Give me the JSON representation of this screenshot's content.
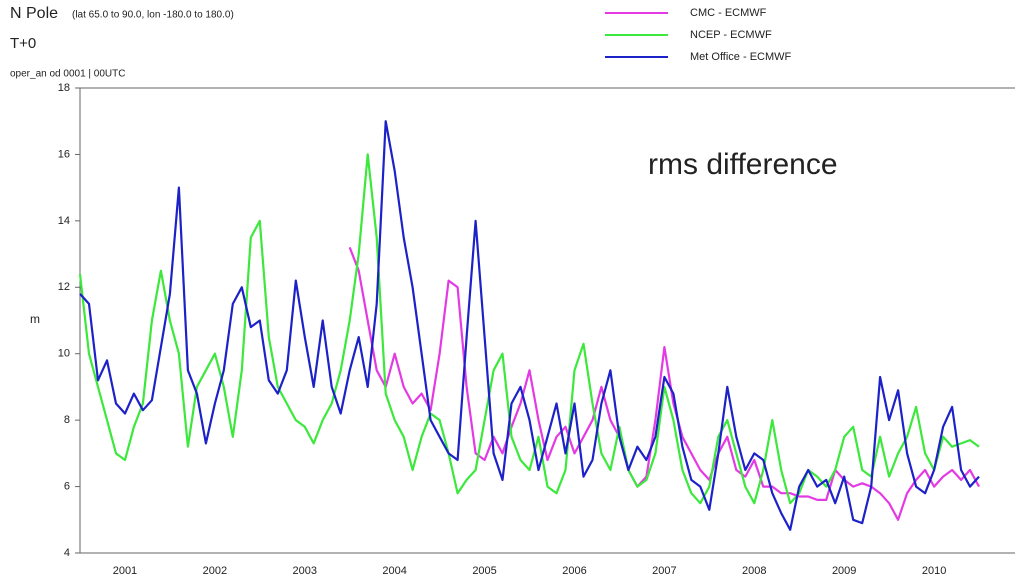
{
  "chart_data": {
    "type": "line",
    "title": "N Pole",
    "subtitle": "(lat 65.0 to 90.0, lon -180.0 to 180.0)",
    "lead_time": "T+0",
    "experiment": "oper_an od 0001 | 00UTC",
    "annotation": "rms difference",
    "ylabel": "m",
    "xlim": [
      2001,
      2011.4
    ],
    "ylim": [
      4,
      18
    ],
    "yticks": [
      4,
      6,
      8,
      10,
      12,
      14,
      16,
      18
    ],
    "xticks": [
      {
        "value": 2001.5,
        "label": "2001"
      },
      {
        "value": 2002.5,
        "label": "2002"
      },
      {
        "value": 2003.5,
        "label": "2003"
      },
      {
        "value": 2004.5,
        "label": "2004"
      },
      {
        "value": 2005.5,
        "label": "2005"
      },
      {
        "value": 2006.5,
        "label": "2006"
      },
      {
        "value": 2007.5,
        "label": "2007"
      },
      {
        "value": 2008.5,
        "label": "2008"
      },
      {
        "value": 2009.5,
        "label": "2009"
      },
      {
        "value": 2010.5,
        "label": "2010"
      }
    ],
    "grid": false,
    "x": [
      2001.0,
      2001.1,
      2001.2,
      2001.3,
      2001.4,
      2001.5,
      2001.6,
      2001.7,
      2001.8,
      2001.9,
      2002.0,
      2002.1,
      2002.2,
      2002.3,
      2002.4,
      2002.5,
      2002.6,
      2002.7,
      2002.8,
      2002.9,
      2003.0,
      2003.1,
      2003.2,
      2003.3,
      2003.4,
      2003.5,
      2003.6,
      2003.7,
      2003.8,
      2003.9,
      2004.0,
      2004.1,
      2004.2,
      2004.3,
      2004.4,
      2004.5,
      2004.6,
      2004.7,
      2004.8,
      2004.9,
      2005.0,
      2005.1,
      2005.2,
      2005.3,
      2005.4,
      2005.5,
      2005.6,
      2005.7,
      2005.8,
      2005.9,
      2006.0,
      2006.1,
      2006.2,
      2006.3,
      2006.4,
      2006.5,
      2006.6,
      2006.7,
      2006.8,
      2006.9,
      2007.0,
      2007.1,
      2007.2,
      2007.3,
      2007.4,
      2007.5,
      2007.6,
      2007.7,
      2007.8,
      2007.9,
      2008.0,
      2008.1,
      2008.2,
      2008.3,
      2008.4,
      2008.5,
      2008.6,
      2008.7,
      2008.8,
      2008.9,
      2009.0,
      2009.1,
      2009.2,
      2009.3,
      2009.4,
      2009.5,
      2009.6,
      2009.7,
      2009.8,
      2009.9,
      2010.0,
      2010.1,
      2010.2,
      2010.3,
      2010.4,
      2010.5,
      2010.6,
      2010.7,
      2010.8,
      2010.9,
      2011.0
    ],
    "series": [
      {
        "name": "CMC - ECMWF",
        "color": "#e43ae4",
        "values": [
          null,
          null,
          null,
          null,
          null,
          null,
          null,
          null,
          null,
          null,
          null,
          null,
          null,
          null,
          null,
          null,
          null,
          null,
          null,
          null,
          null,
          null,
          null,
          null,
          null,
          null,
          null,
          null,
          null,
          null,
          13.2,
          12.5,
          11.0,
          9.5,
          9.0,
          10.0,
          9.0,
          8.5,
          8.8,
          8.3,
          10.0,
          12.2,
          12.0,
          9.0,
          7.0,
          6.8,
          7.5,
          7.0,
          7.8,
          8.5,
          9.5,
          8.0,
          6.8,
          7.5,
          7.8,
          7.0,
          7.5,
          8.0,
          9.0,
          8.0,
          7.5,
          6.5,
          6.0,
          6.3,
          8.0,
          10.2,
          8.5,
          7.5,
          7.0,
          6.5,
          6.2,
          7.0,
          7.5,
          6.5,
          6.3,
          6.8,
          6.0,
          6.0,
          5.8,
          5.8,
          5.7,
          5.7,
          5.6,
          5.6,
          6.5,
          6.2,
          6.0,
          6.1,
          6.0,
          5.8,
          5.5,
          5.0,
          5.8,
          6.2,
          6.5,
          6.0,
          6.3,
          6.5,
          6.2,
          6.5,
          6.0
        ]
      },
      {
        "name": "NCEP - ECMWF",
        "color": "#3be83b",
        "values": [
          12.4,
          10.0,
          9.0,
          8.0,
          7.0,
          6.8,
          7.8,
          8.5,
          11.0,
          12.5,
          11.0,
          10.0,
          7.2,
          9.0,
          9.5,
          10.0,
          9.0,
          7.5,
          9.5,
          13.5,
          14.0,
          10.5,
          9.0,
          8.5,
          8.0,
          7.8,
          7.3,
          8.0,
          8.5,
          9.5,
          11.0,
          13.0,
          16.0,
          13.5,
          8.8,
          8.0,
          7.5,
          6.5,
          7.5,
          8.2,
          8.0,
          7.0,
          5.8,
          6.2,
          6.5,
          8.0,
          9.5,
          10.0,
          7.5,
          6.8,
          6.5,
          7.5,
          6.0,
          5.8,
          6.5,
          9.5,
          10.3,
          8.5,
          7.0,
          6.5,
          7.8,
          6.5,
          6.0,
          6.2,
          7.0,
          9.0,
          8.0,
          6.5,
          5.8,
          5.5,
          6.0,
          7.5,
          8.0,
          7.0,
          6.0,
          5.5,
          6.5,
          8.0,
          6.5,
          5.5,
          5.8,
          6.5,
          6.3,
          6.0,
          6.5,
          7.5,
          7.8,
          6.5,
          6.3,
          7.5,
          6.3,
          7.0,
          7.5,
          8.4,
          7.0,
          6.5,
          7.5,
          7.2,
          7.3,
          7.4,
          7.2
        ]
      },
      {
        "name": "Met Office - ECMWF",
        "color": "#1c22c8",
        "values": [
          11.8,
          11.5,
          9.2,
          9.8,
          8.5,
          8.2,
          8.8,
          8.3,
          8.6,
          10.2,
          11.8,
          15.0,
          9.5,
          8.8,
          7.3,
          8.5,
          9.5,
          11.5,
          12.0,
          10.8,
          11.0,
          9.2,
          8.8,
          9.5,
          12.2,
          10.5,
          9.0,
          11.0,
          9.0,
          8.2,
          9.5,
          10.5,
          9.0,
          11.5,
          17.0,
          15.5,
          13.5,
          12.0,
          10.0,
          8.0,
          7.5,
          7.0,
          6.8,
          10.5,
          14.0,
          10.5,
          7.0,
          6.2,
          8.5,
          9.0,
          8.0,
          6.5,
          7.5,
          8.5,
          7.0,
          8.5,
          6.3,
          6.8,
          8.5,
          9.5,
          7.5,
          6.5,
          7.2,
          6.8,
          7.5,
          9.3,
          8.8,
          7.2,
          6.2,
          6.0,
          5.3,
          7.0,
          9.0,
          7.5,
          6.5,
          7.0,
          6.8,
          5.8,
          5.2,
          4.7,
          6.0,
          6.5,
          6.0,
          6.2,
          5.5,
          6.3,
          5.0,
          4.9,
          6.0,
          9.3,
          8.0,
          8.9,
          7.0,
          6.0,
          5.8,
          6.5,
          7.8,
          8.4,
          6.5,
          6.0,
          6.3
        ]
      }
    ]
  }
}
